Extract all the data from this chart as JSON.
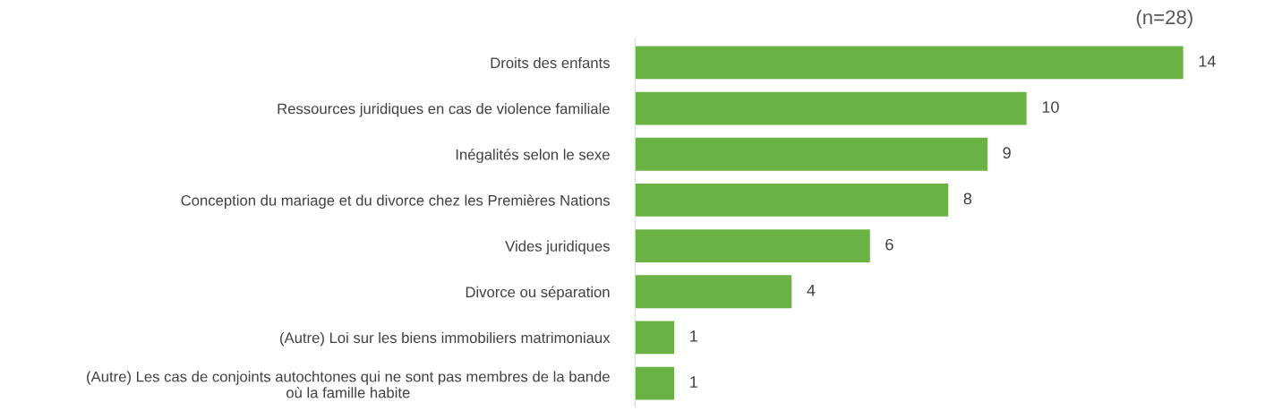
{
  "chart_data": {
    "type": "bar",
    "orientation": "horizontal",
    "title": "(n=28)",
    "categories": [
      "Droits des enfants",
      "Ressources juridiques en cas de violence familiale",
      "Inégalités selon le sexe",
      "Conception du mariage et du divorce chez les Premières Nations",
      "Vides juridiques",
      "Divorce ou séparation",
      "(Autre) Loi sur les biens immobiliers matrimoniaux",
      "(Autre) Les cas de conjoints autochtones qui ne sont pas membres de la bande\noù la famille habite"
    ],
    "values": [
      14,
      10,
      9,
      8,
      6,
      4,
      1,
      1
    ],
    "color": "#6ab244",
    "data_labels": true,
    "grid": false,
    "legend": false
  }
}
